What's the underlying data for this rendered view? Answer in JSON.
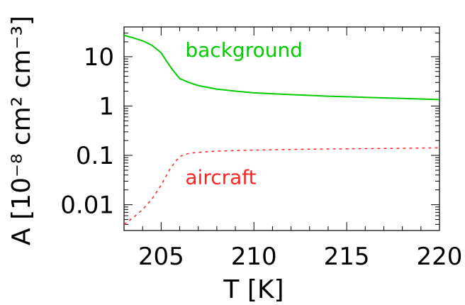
{
  "chart_data": {
    "type": "line",
    "xlabel": "T [K]",
    "ylabel": "A [10⁻⁸ cm² cm⁻³]",
    "xlim": [
      203,
      220
    ],
    "ylim": [
      0.003,
      40
    ],
    "yscale": "log",
    "x_ticks": [
      205,
      210,
      215,
      220
    ],
    "y_ticks": [
      0.01,
      0.1,
      1,
      10
    ],
    "x_tick_labels": [
      "205",
      "210",
      "215",
      "220"
    ],
    "y_tick_labels": [
      "0.01",
      "0.1",
      "1",
      "10"
    ],
    "grid": false,
    "legend": "none",
    "series": [
      {
        "name": "background",
        "color": "#00cc00",
        "style": "solid",
        "x": [
          203,
          203.5,
          204,
          204.5,
          205,
          205.3,
          205.6,
          206,
          206.5,
          207,
          208,
          209,
          210,
          212,
          214,
          216,
          218,
          220
        ],
        "y": [
          27,
          24,
          21,
          17,
          12,
          8,
          5.5,
          3.6,
          3.0,
          2.6,
          2.2,
          2.0,
          1.85,
          1.7,
          1.58,
          1.5,
          1.43,
          1.35
        ]
      },
      {
        "name": "aircraft",
        "color": "#ff2222",
        "style": "dashed",
        "x": [
          203,
          203.5,
          204,
          204.5,
          205,
          205.5,
          206,
          206.5,
          207,
          208,
          210,
          212,
          214,
          216,
          218,
          220
        ],
        "y": [
          0.004,
          0.0055,
          0.008,
          0.013,
          0.025,
          0.055,
          0.095,
          0.11,
          0.115,
          0.122,
          0.128,
          0.132,
          0.135,
          0.137,
          0.139,
          0.142
        ]
      }
    ],
    "annotations": [
      {
        "text": "background",
        "x": 206.3,
        "y": 10,
        "color": "#00cc00"
      },
      {
        "text": "aircraft",
        "x": 206.3,
        "y": 0.026,
        "color": "#ff2222"
      }
    ]
  }
}
